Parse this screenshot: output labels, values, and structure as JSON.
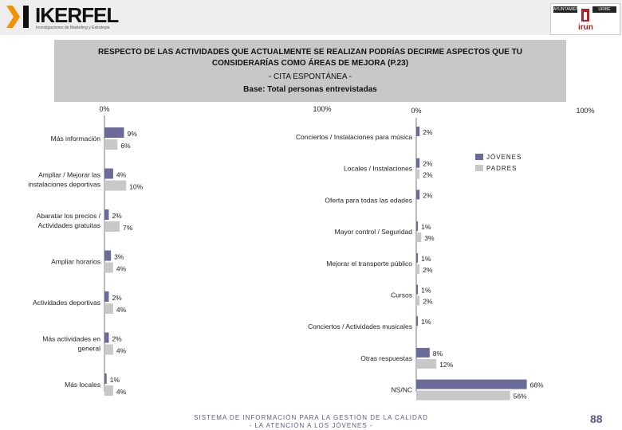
{
  "header": {
    "brand": "IKERFEL",
    "tagline": "Investigaciones de Marketing y Estrategia",
    "logo_right": "irun",
    "badge_left": "AYUNTAMIENTO",
    "badge_right": "URIBE"
  },
  "title": {
    "line1": "RESPECTO DE LAS ACTIVIDADES QUE ACTUALMENTE SE REALIZAN PODRÍAS DECIRME ASPECTOS QUE TU",
    "line2": "CONSIDERARÍAS COMO ÁREAS DE MEJORA (P.23)",
    "line3": "- CITA ESPONTÁNEA -",
    "line4": "Base: Total personas entrevistadas"
  },
  "footer": {
    "line1": "SISTEMA DE INFORMACIÓN PARA LA GESTIÓN DE LA CALIDAD",
    "line2": "- LA ATENCIÓN A LOS JÓVENES -",
    "page": "88"
  },
  "chart_data": [
    {
      "type": "bar",
      "orientation": "horizontal",
      "axis_min_label": "0%",
      "axis_max_label": "100%",
      "xlim": [
        0,
        100
      ],
      "categories": [
        [
          "Más información"
        ],
        [
          "Ampliar / Mejorar las",
          "instalaciones deportivas"
        ],
        [
          "Abaratar los precios /",
          "Actividades gratuitas"
        ],
        [
          "Ampliar horarios"
        ],
        [
          "Actividades deportivas"
        ],
        [
          "Más actividades en",
          "general"
        ],
        [
          "Más locales"
        ]
      ],
      "series": [
        {
          "name": "JÓVENES",
          "color": "#6b6b9a",
          "values": [
            9,
            4,
            2,
            3,
            2,
            2,
            1
          ]
        },
        {
          "name": "PADRES",
          "color": "#c8c8c8",
          "values": [
            6,
            10,
            7,
            4,
            4,
            4,
            4
          ]
        }
      ]
    },
    {
      "type": "bar",
      "orientation": "horizontal",
      "axis_min_label": "0%",
      "axis_max_label": "100%",
      "xlim": [
        0,
        100
      ],
      "legend": "right",
      "categories": [
        [
          "Conciertos / Instalaciones para música"
        ],
        [
          "Locales / Instalaciones"
        ],
        [
          "Oferta para todas las edades"
        ],
        [
          "Mayor control / Seguridad"
        ],
        [
          "Mejorar el transporte público"
        ],
        [
          "Cursos"
        ],
        [
          "Conciertos / Actividades musicales"
        ],
        [
          "Otras respuestas"
        ],
        [
          "NS/NC"
        ]
      ],
      "series": [
        {
          "name": "JÓVENES",
          "color": "#6b6b9a",
          "values": [
            2,
            2,
            2,
            1,
            1,
            1,
            1,
            8,
            66
          ]
        },
        {
          "name": "PADRES",
          "color": "#c8c8c8",
          "values": [
            null,
            2,
            null,
            3,
            2,
            2,
            null,
            12,
            56
          ]
        }
      ]
    }
  ]
}
